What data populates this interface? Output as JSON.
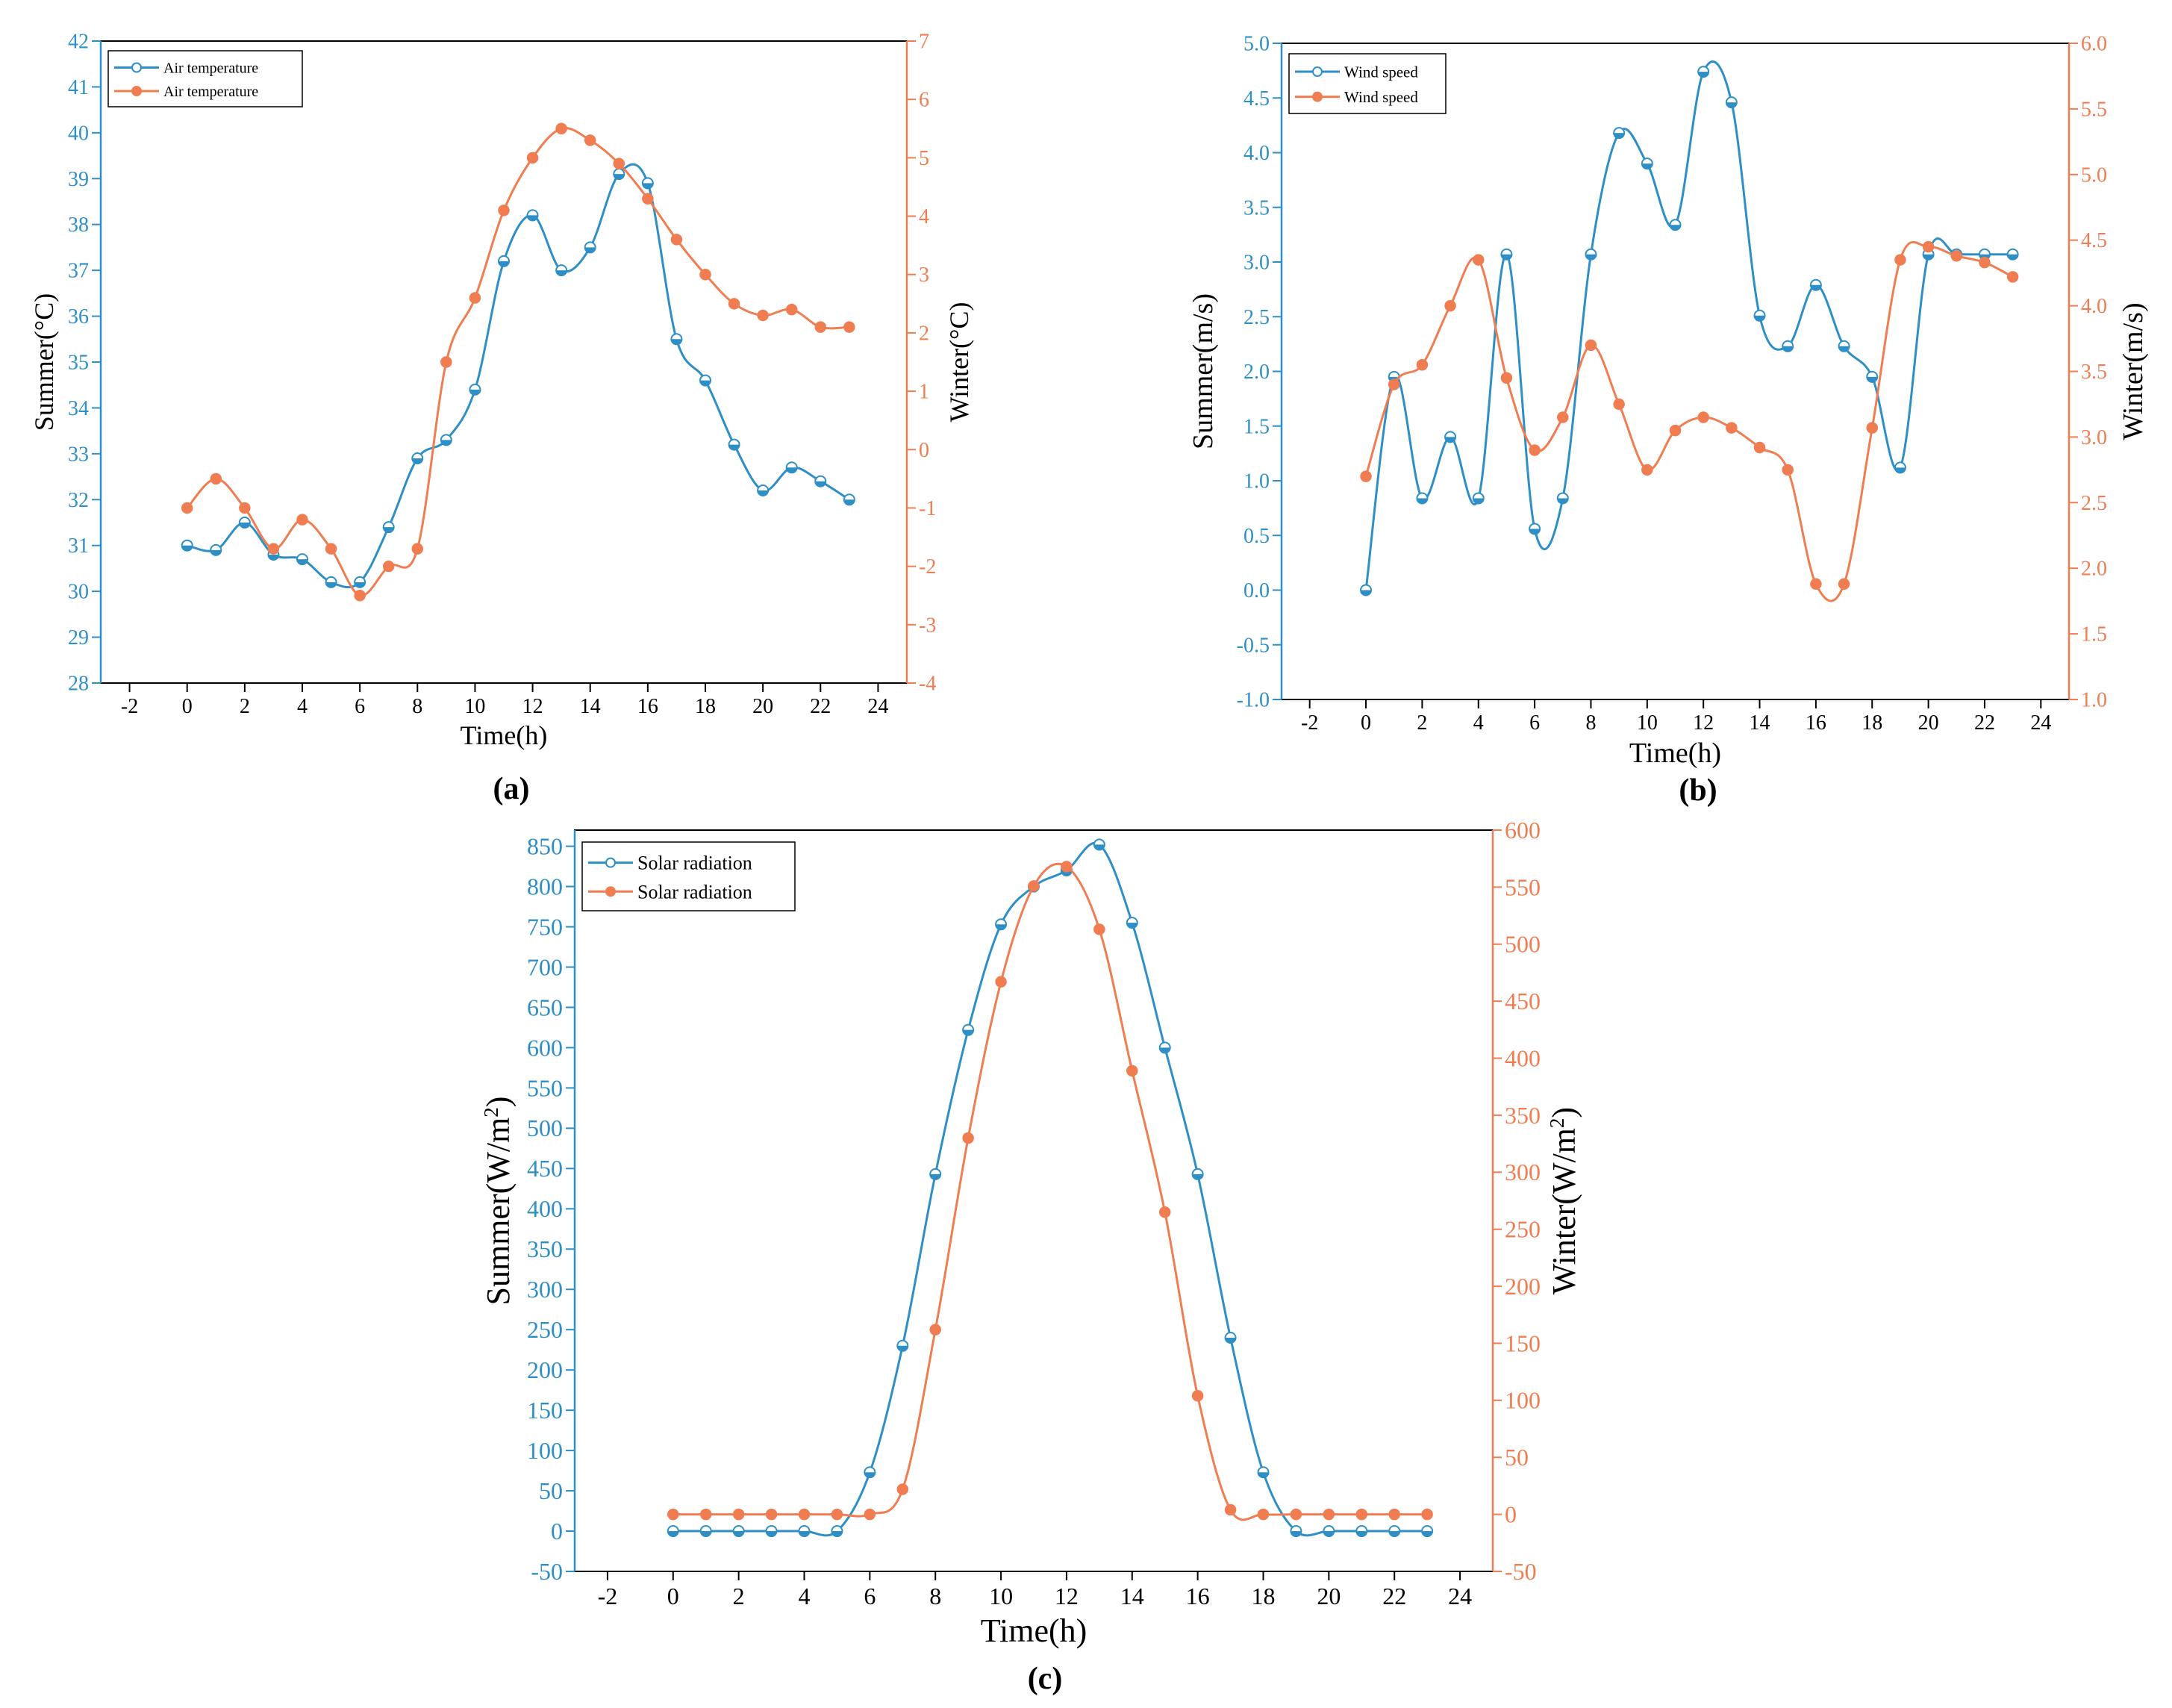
{
  "colors": {
    "summer": "#2e8fc6",
    "winter": "#f07d52",
    "axis": "#000000"
  },
  "chart_data": [
    {
      "id": "a",
      "type": "line",
      "panel_label": "(a)",
      "xlabel": "Time(h)",
      "ylabel_left": "Summer(°C)",
      "ylabel_right": "Winter(°C)",
      "xlim": [
        -3,
        25
      ],
      "x_ticks": [
        -2,
        0,
        2,
        4,
        6,
        8,
        10,
        12,
        14,
        16,
        18,
        20,
        22,
        24
      ],
      "ylim_left": [
        28,
        42
      ],
      "y_ticks_left": [
        28,
        29,
        30,
        31,
        32,
        33,
        34,
        35,
        36,
        37,
        38,
        39,
        40,
        41,
        42
      ],
      "ylim_right": [
        -4,
        7
      ],
      "y_ticks_right": [
        -4,
        -3,
        -2,
        -1,
        0,
        1,
        2,
        3,
        4,
        5,
        6,
        7
      ],
      "legend": [
        "Air temperature",
        "Air temperature"
      ],
      "legend_position": "top-left",
      "x": [
        0,
        1,
        2,
        3,
        4,
        5,
        6,
        7,
        8,
        9,
        10,
        11,
        12,
        13,
        14,
        15,
        16,
        17,
        18,
        19,
        20,
        21,
        22,
        23
      ],
      "series": [
        {
          "name": "Air temperature",
          "axis": "left",
          "season": "summer",
          "values": [
            31.0,
            30.9,
            31.5,
            30.8,
            30.7,
            30.2,
            30.2,
            31.4,
            32.9,
            33.3,
            34.4,
            37.2,
            38.2,
            37.0,
            37.5,
            39.1,
            38.9,
            35.5,
            34.6,
            33.2,
            32.2,
            32.7,
            32.4,
            32.0
          ]
        },
        {
          "name": "Air temperature",
          "axis": "right",
          "season": "winter",
          "values": [
            -1.0,
            -0.5,
            -1.0,
            -1.7,
            -1.2,
            -1.7,
            -2.5,
            -2.0,
            -1.7,
            1.5,
            2.6,
            4.1,
            5.0,
            5.5,
            5.3,
            4.9,
            4.3,
            3.6,
            3.0,
            2.5,
            2.3,
            2.4,
            2.1,
            2.1
          ]
        }
      ]
    },
    {
      "id": "b",
      "type": "line",
      "panel_label": "(b)",
      "xlabel": "Time(h)",
      "ylabel_left": "Summer(m/s)",
      "ylabel_right": "Winter(m/s)",
      "xlim": [
        -3,
        25
      ],
      "x_ticks": [
        -2,
        0,
        2,
        4,
        6,
        8,
        10,
        12,
        14,
        16,
        18,
        20,
        22,
        24
      ],
      "ylim_left": [
        -1.0,
        5.0
      ],
      "y_ticks_left": [
        -1.0,
        -0.5,
        0.0,
        0.5,
        1.0,
        1.5,
        2.0,
        2.5,
        3.0,
        3.5,
        4.0,
        4.5,
        5.0
      ],
      "ylim_right": [
        1.0,
        6.0
      ],
      "y_ticks_right": [
        1.0,
        1.5,
        2.0,
        2.5,
        3.0,
        3.5,
        4.0,
        4.5,
        5.0,
        5.5,
        6.0
      ],
      "tick_decimals": 1,
      "legend": [
        "Wind speed",
        "Wind speed"
      ],
      "legend_position": "top-left",
      "x": [
        0,
        1,
        2,
        3,
        4,
        5,
        6,
        7,
        8,
        9,
        10,
        11,
        12,
        13,
        14,
        15,
        16,
        17,
        18,
        19,
        20,
        21,
        22,
        23
      ],
      "series": [
        {
          "name": "Wind speed",
          "axis": "left",
          "season": "summer",
          "values": [
            0.0,
            1.95,
            0.84,
            1.4,
            0.84,
            3.07,
            0.56,
            0.84,
            3.07,
            4.18,
            3.9,
            3.34,
            4.74,
            4.46,
            2.51,
            2.23,
            2.79,
            2.23,
            1.95,
            1.12,
            3.07,
            3.07,
            3.07,
            3.07
          ]
        },
        {
          "name": "Wind speed",
          "axis": "right",
          "season": "winter",
          "values": [
            2.7,
            3.4,
            3.55,
            4.0,
            4.35,
            3.45,
            2.9,
            3.15,
            3.7,
            3.25,
            2.75,
            3.05,
            3.15,
            3.07,
            2.92,
            2.75,
            1.88,
            1.88,
            3.07,
            4.35,
            4.45,
            4.38,
            4.33,
            4.22
          ]
        }
      ]
    },
    {
      "id": "c",
      "type": "line",
      "panel_label": "(c)",
      "xlabel": "Time(h)",
      "ylabel_left": "Summer(W/m",
      "ylabel_right": "Winter(W/m",
      "ylabel_superscript": "2",
      "ylabel_suffix": ")",
      "xlim": [
        -3,
        25
      ],
      "x_ticks": [
        -2,
        0,
        2,
        4,
        6,
        8,
        10,
        12,
        14,
        16,
        18,
        20,
        22,
        24
      ],
      "ylim_left": [
        -50,
        870
      ],
      "y_ticks_left": [
        -50,
        0,
        50,
        100,
        150,
        200,
        250,
        300,
        350,
        400,
        450,
        500,
        550,
        600,
        650,
        700,
        750,
        800,
        850
      ],
      "ylim_right": [
        -50,
        600
      ],
      "y_ticks_right": [
        -50,
        0,
        50,
        100,
        150,
        200,
        250,
        300,
        350,
        400,
        450,
        500,
        550,
        600
      ],
      "legend": [
        "Solar radiation",
        "Solar radiation"
      ],
      "legend_position": "top-left",
      "x": [
        0,
        1,
        2,
        3,
        4,
        5,
        6,
        7,
        8,
        9,
        10,
        11,
        12,
        13,
        14,
        15,
        16,
        17,
        18,
        19,
        20,
        21,
        22,
        23
      ],
      "series": [
        {
          "name": "Solar radiation",
          "axis": "left",
          "season": "summer",
          "values": [
            0,
            0,
            0,
            0,
            0,
            0,
            73,
            230,
            443,
            622,
            753,
            800,
            820,
            852,
            755,
            600,
            443,
            240,
            73,
            0,
            0,
            0,
            0,
            0
          ]
        },
        {
          "name": "Solar radiation",
          "axis": "right",
          "season": "winter",
          "values": [
            0,
            0,
            0,
            0,
            0,
            0,
            0,
            22,
            162,
            330,
            467,
            551,
            568,
            513,
            389,
            265,
            104,
            4,
            0,
            0,
            0,
            0,
            0,
            0
          ]
        }
      ]
    }
  ]
}
